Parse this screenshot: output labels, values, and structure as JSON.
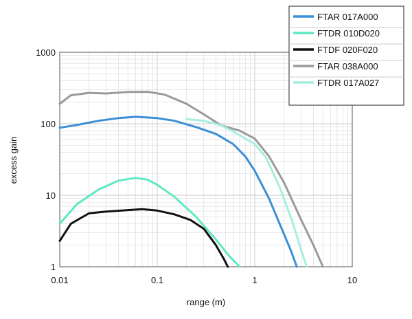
{
  "chart_data": {
    "type": "line",
    "xlabel": "range (m)",
    "ylabel": "excess gain",
    "xscale": "log",
    "yscale": "log",
    "xlim": [
      0.01,
      10
    ],
    "ylim": [
      1,
      1000
    ],
    "x_ticks": [
      {
        "value": 0.01,
        "label": "0.01"
      },
      {
        "value": 0.1,
        "label": "0.1"
      },
      {
        "value": 1,
        "label": "1"
      },
      {
        "value": 10,
        "label": "10"
      }
    ],
    "y_ticks": [
      {
        "value": 1,
        "label": "1"
      },
      {
        "value": 10,
        "label": "10"
      },
      {
        "value": 100,
        "label": "100"
      },
      {
        "value": 1000,
        "label": "1000"
      }
    ],
    "grid": true,
    "legend_position": "top-right",
    "series": [
      {
        "name": "FTAR 017A000",
        "color": "#3a8fd6",
        "points": [
          [
            0.01,
            88
          ],
          [
            0.015,
            96
          ],
          [
            0.025,
            110
          ],
          [
            0.04,
            120
          ],
          [
            0.06,
            125
          ],
          [
            0.1,
            120
          ],
          [
            0.15,
            110
          ],
          [
            0.25,
            90
          ],
          [
            0.4,
            72
          ],
          [
            0.6,
            52
          ],
          [
            0.8,
            35
          ],
          [
            1,
            22
          ],
          [
            1.4,
            9
          ],
          [
            1.8,
            4
          ],
          [
            2.3,
            1.8
          ],
          [
            2.7,
            1
          ]
        ]
      },
      {
        "name": "FTDR 010D020",
        "color": "#5fe8c4",
        "points": [
          [
            0.01,
            4
          ],
          [
            0.015,
            7.5
          ],
          [
            0.025,
            12
          ],
          [
            0.04,
            16
          ],
          [
            0.06,
            17.5
          ],
          [
            0.08,
            16.5
          ],
          [
            0.1,
            14
          ],
          [
            0.15,
            9.5
          ],
          [
            0.25,
            5
          ],
          [
            0.4,
            2.4
          ],
          [
            0.55,
            1.4
          ],
          [
            0.7,
            1
          ]
        ]
      },
      {
        "name": "FTDF 020F020",
        "color": "#111111",
        "points": [
          [
            0.01,
            2.3
          ],
          [
            0.013,
            4
          ],
          [
            0.02,
            5.6
          ],
          [
            0.03,
            5.9
          ],
          [
            0.05,
            6.2
          ],
          [
            0.07,
            6.4
          ],
          [
            0.1,
            6.1
          ],
          [
            0.15,
            5.4
          ],
          [
            0.22,
            4.5
          ],
          [
            0.3,
            3.4
          ],
          [
            0.4,
            2
          ],
          [
            0.48,
            1.3
          ],
          [
            0.53,
            1
          ]
        ]
      },
      {
        "name": "FTAR 038A000",
        "color": "#9a9a9a",
        "points": [
          [
            0.01,
            190
          ],
          [
            0.013,
            250
          ],
          [
            0.02,
            270
          ],
          [
            0.03,
            265
          ],
          [
            0.05,
            278
          ],
          [
            0.08,
            280
          ],
          [
            0.12,
            255
          ],
          [
            0.2,
            190
          ],
          [
            0.3,
            135
          ],
          [
            0.45,
            95
          ],
          [
            0.7,
            80
          ],
          [
            1,
            62
          ],
          [
            1.4,
            35
          ],
          [
            2,
            15
          ],
          [
            3,
            4.5
          ],
          [
            4,
            2
          ],
          [
            5,
            1
          ]
        ]
      },
      {
        "name": "FTDR 017A027",
        "color": "#a8eee0",
        "points": [
          [
            0.2,
            116
          ],
          [
            0.3,
            110
          ],
          [
            0.45,
            95
          ],
          [
            0.6,
            78
          ],
          [
            0.8,
            62
          ],
          [
            1,
            52
          ],
          [
            1.3,
            34
          ],
          [
            1.8,
            13
          ],
          [
            2.4,
            4.5
          ],
          [
            3,
            1.7
          ],
          [
            3.4,
            1
          ]
        ]
      }
    ]
  }
}
